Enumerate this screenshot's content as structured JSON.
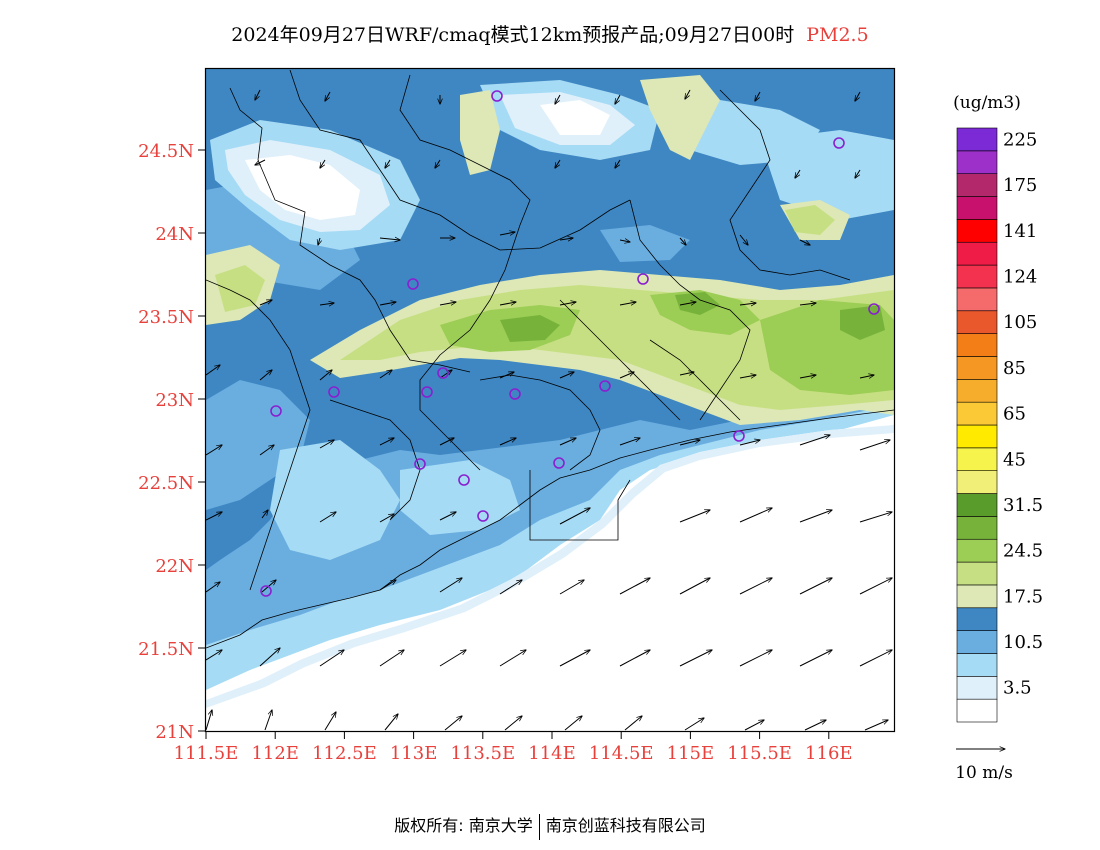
{
  "title": {
    "main": "2024年09月27日WRF/cmaq模式12km预报产品;09月27日00时",
    "species": "PM2.5"
  },
  "colors": {
    "axis_label": "#e8413c",
    "title_species": "#e8413c"
  },
  "axes": {
    "lat_ticks": [
      "21N",
      "21.5N",
      "22N",
      "22.5N",
      "23N",
      "23.5N",
      "24N",
      "24.5N"
    ],
    "lon_ticks": [
      "111.5E",
      "112E",
      "112.5E",
      "113E",
      "113.5E",
      "114E",
      "114.5E",
      "115E",
      "115.5E",
      "116E"
    ]
  },
  "colorbar": {
    "unit": "(ug/m3)",
    "levels": [
      {
        "label": "",
        "color": "#ffffff"
      },
      {
        "label": "3.5",
        "color": "#dff0fa"
      },
      {
        "label": "",
        "color": "#a6dbf5"
      },
      {
        "label": "10.5",
        "color": "#6aaee0"
      },
      {
        "label": "",
        "color": "#3f87c3"
      },
      {
        "label": "17.5",
        "color": "#dde8b6"
      },
      {
        "label": "",
        "color": "#c7df83"
      },
      {
        "label": "24.5",
        "color": "#9ccd55"
      },
      {
        "label": "",
        "color": "#77b33b"
      },
      {
        "label": "31.5",
        "color": "#5a9c2c"
      },
      {
        "label": "",
        "color": "#f2ef78"
      },
      {
        "label": "45",
        "color": "#f6f34c"
      },
      {
        "label": "",
        "color": "#ffea00"
      },
      {
        "label": "65",
        "color": "#fbc936"
      },
      {
        "label": "",
        "color": "#f7ad2c"
      },
      {
        "label": "85",
        "color": "#f59823"
      },
      {
        "label": "",
        "color": "#f37e18"
      },
      {
        "label": "105",
        "color": "#e9572d"
      },
      {
        "label": "",
        "color": "#f56b6b"
      },
      {
        "label": "124",
        "color": "#f2324e"
      },
      {
        "label": "",
        "color": "#ee1c47"
      },
      {
        "label": "141",
        "color": "#ff0000"
      },
      {
        "label": "",
        "color": "#c8106d"
      },
      {
        "label": "175",
        "color": "#b2286a"
      },
      {
        "label": "",
        "color": "#9c30c8"
      },
      {
        "label": "225",
        "color": "#7b2ad6"
      }
    ]
  },
  "wind_reference": {
    "label": "10 m/s"
  },
  "footer": {
    "copyright_prefix": "版权所有:",
    "org1": "南京大学",
    "org2": "南京创蓝科技有限公司"
  }
}
